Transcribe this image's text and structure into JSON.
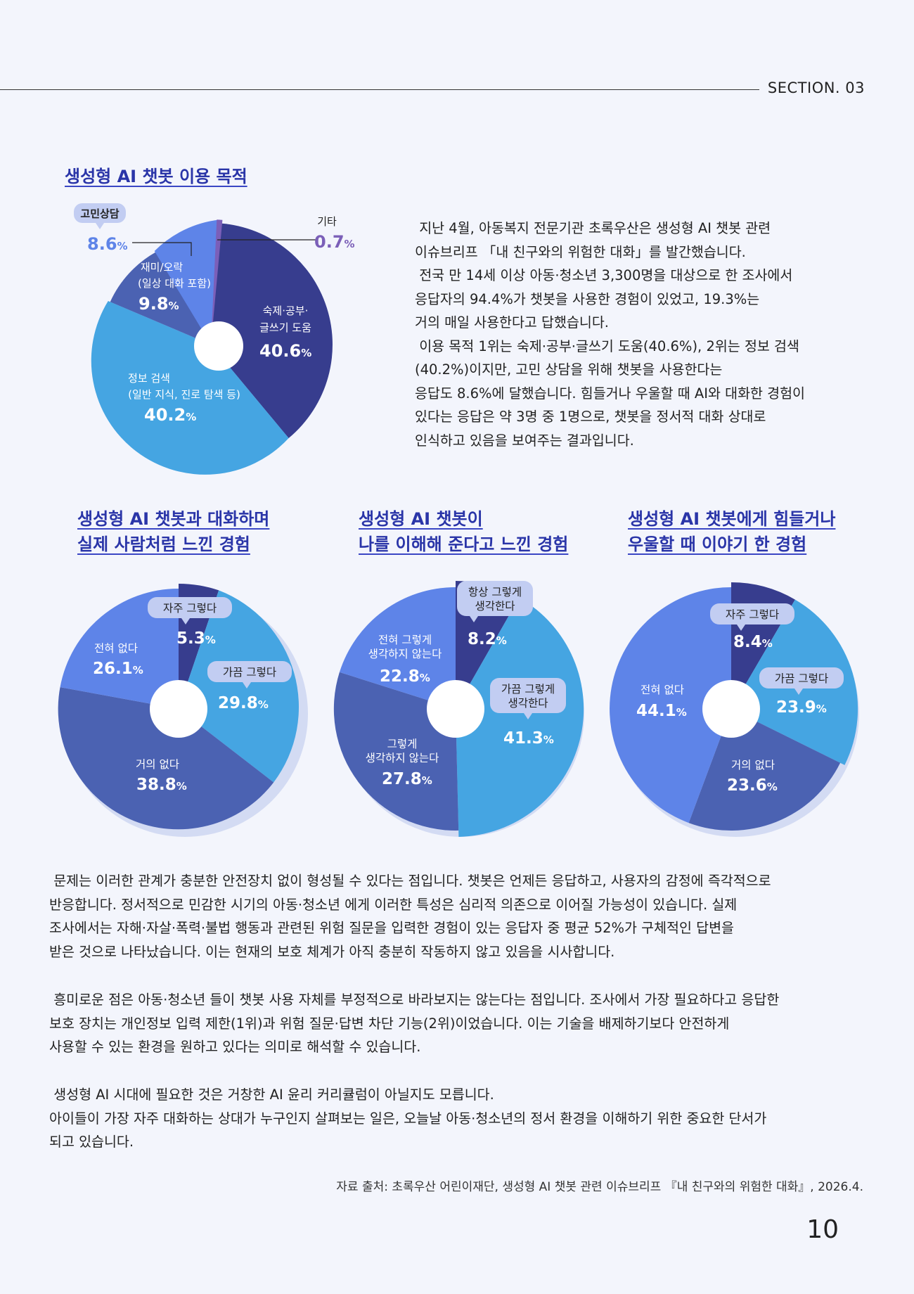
{
  "header": {
    "section": "SECTION. 03"
  },
  "main_chart": {
    "title": "생성형 AI 챗봇 이용 목적",
    "labels": {
      "homework": {
        "line1": "숙제·공부·",
        "line2": "글쓰기 도움",
        "value": "40.6"
      },
      "info": {
        "line1": "정보 검색",
        "line2": "(일반 지식, 진로 탐색 등)",
        "value": "40.2"
      },
      "fun": {
        "line1": "재미/오락",
        "line2": "(일상 대화 포함)",
        "value": "9.8"
      },
      "counsel": {
        "line1": "고민상담",
        "value": "8.6"
      },
      "etc": {
        "line1": "기타",
        "value": "0.7"
      }
    },
    "percent_sign": "%"
  },
  "intro": {
    "lines": [
      " 지난 4월, 아동복지 전문기관 초록우산은 생성형 AI 챗봇 관련",
      "이슈브리프 「내 친구와의 위험한 대화」를 발간했습니다.",
      " 전국 만 14세 이상 아동·청소년 3,300명을 대상으로 한 조사에서",
      "응답자의 94.4%가 챗봇을 사용한 경험이 있었고, 19.3%는",
      "거의 매일 사용한다고 답했습니다.",
      " 이용 목적 1위는 숙제·공부·글쓰기 도움(40.6%), 2위는 정보 검색",
      "(40.2%)이지만, 고민 상담을 위해 챗봇을 사용한다는",
      "응답도 8.6%에 달했습니다. 힘들거나 우울할 때 AI와 대화한 경험이",
      "있다는 응답은 약 3명 중 1명으로, 챗봇을 정서적 대화 상대로",
      "인식하고 있음을 보여주는 결과입니다."
    ]
  },
  "small_charts": [
    {
      "title_line1": "생성형 AI 챗봇과 대화하며",
      "title_line2": "실제 사람처럼 느낀 경험",
      "slices": [
        {
          "label": "자주 그렇다",
          "value": "5.3"
        },
        {
          "label": "가끔 그렇다",
          "value": "29.8"
        },
        {
          "label": "거의 없다",
          "value": "38.8"
        },
        {
          "label": "전혀 없다",
          "value": "26.1"
        }
      ]
    },
    {
      "title_line1": "생성형 AI 챗봇이",
      "title_line2": "나를 이해해 준다고 느낀 경험",
      "slices": [
        {
          "label1": "항상 그렇게",
          "label2": "생각한다",
          "value": "8.2"
        },
        {
          "label1": "가끔 그렇게",
          "label2": "생각한다",
          "value": "41.3"
        },
        {
          "label1": "그렇게",
          "label2": "생각하지 않는다",
          "value": "27.8"
        },
        {
          "label1": "전혀 그렇게",
          "label2": "생각하지 않는다",
          "value": "22.8"
        }
      ]
    },
    {
      "title_line1": "생성형 AI 챗봇에게 힘들거나",
      "title_line2": "우울할 때 이야기 한 경험",
      "slices": [
        {
          "label": "자주 그렇다",
          "value": "8.4"
        },
        {
          "label": "가끔 그렇다",
          "value": "23.9"
        },
        {
          "label": "거의 없다",
          "value": "23.6"
        },
        {
          "label": "전혀 없다",
          "value": "44.1"
        }
      ]
    }
  ],
  "body": {
    "p1": [
      " 문제는 이러한 관계가 충분한 안전장치 없이 형성될 수 있다는 점입니다. 챗봇은 언제든 응답하고, 사용자의 감정에 즉각적으로",
      "반응합니다. 정서적으로 민감한 시기의 아동·청소년 에게 이러한 특성은 심리적 의존으로 이어질 가능성이 있습니다. 실제",
      "조사에서는 자해·자살·폭력·불법 행동과 관련된 위험 질문을 입력한 경험이 있는 응답자 중 평균 52%가 구체적인 답변을",
      "받은 것으로 나타났습니다. 이는 현재의 보호 체계가 아직 충분히 작동하지 않고 있음을 시사합니다."
    ],
    "p2": [
      " 흥미로운 점은 아동·청소년 들이 챗봇 사용 자체를 부정적으로 바라보지는 않는다는 점입니다. 조사에서 가장 필요하다고 응답한",
      "보호 장치는 개인정보 입력 제한(1위)과 위험 질문·답변 차단 기능(2위)이었습니다. 이는 기술을 배제하기보다 안전하게",
      "사용할 수 있는 환경을 원하고 있다는 의미로 해석할 수 있습니다."
    ],
    "p3": [
      " 생성형 AI 시대에 필요한 것은 거창한 AI 윤리 커리큘럼이 아닐지도 모릅니다.",
      "아이들이 가장 자주 대화하는 상대가 누구인지 살펴보는 일은, 오늘날 아동·청소년의 정서 환경을 이해하기 위한 중요한 단서가",
      "되고 있습니다."
    ]
  },
  "source": "자료 출처: 초록우산 어린이재단, 생성형 AI 챗봇 관련 이슈브리프 『내 친구와의 위험한 대화』, 2026.4.",
  "page_number": "10",
  "colors": {
    "navy": "#373d8e",
    "sky": "#45a5e2",
    "mid_blue": "#4b62b2",
    "periwinkle": "#5e84e8",
    "purple": "#7b5fb8",
    "title": "#2a35a8"
  }
}
